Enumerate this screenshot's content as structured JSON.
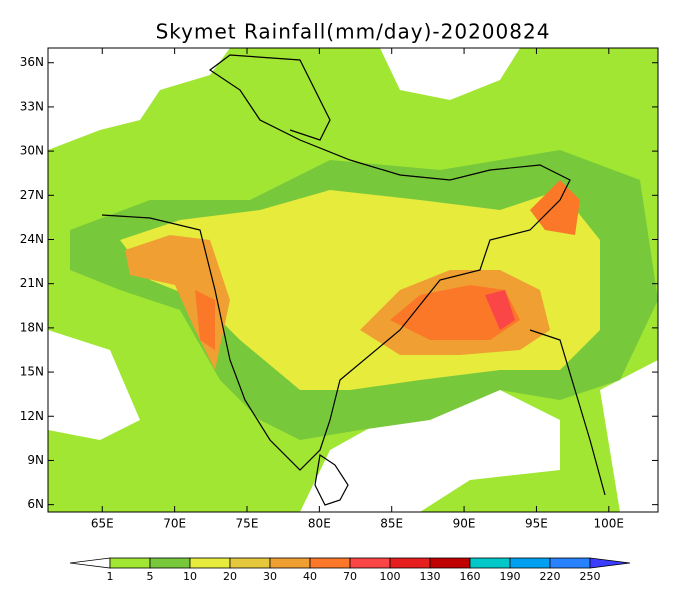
{
  "map": {
    "title": "Skymet Rainfall(mm/day)-20200824",
    "lonlim": [
      61.25,
      103.4
    ],
    "latlim": [
      5.5,
      37
    ],
    "lon_ticks": [
      {
        "value": 65,
        "label": "65E"
      },
      {
        "value": 70,
        "label": "70E"
      },
      {
        "value": 75,
        "label": "75E"
      },
      {
        "value": 80,
        "label": "80E"
      },
      {
        "value": 85,
        "label": "85E"
      },
      {
        "value": 90,
        "label": "90E"
      },
      {
        "value": 95,
        "label": "95E"
      },
      {
        "value": 100,
        "label": "100E"
      }
    ],
    "lat_ticks": [
      {
        "value": 6,
        "label": "6N"
      },
      {
        "value": 9,
        "label": "9N"
      },
      {
        "value": 12,
        "label": "12N"
      },
      {
        "value": 15,
        "label": "15N"
      },
      {
        "value": 18,
        "label": "18N"
      },
      {
        "value": 21,
        "label": "21N"
      },
      {
        "value": 24,
        "label": "24N"
      },
      {
        "value": 27,
        "label": "27N"
      },
      {
        "value": 30,
        "label": "30N"
      },
      {
        "value": 33,
        "label": "33N"
      },
      {
        "value": 36,
        "label": "36N"
      }
    ],
    "colorbar": {
      "levels": [
        1,
        5,
        10,
        20,
        30,
        40,
        70,
        100,
        130,
        160,
        190,
        220,
        250
      ],
      "colors": [
        "#ffffff",
        "#a0e632",
        "#78c83c",
        "#e6eb3c",
        "#e6c83c",
        "#f0a032",
        "#fa7828",
        "#fa4646",
        "#e61e1e",
        "#c00000",
        "#00c8c8",
        "#00a0f0",
        "#2882ff",
        "#3c3cff"
      ]
    }
  }
}
